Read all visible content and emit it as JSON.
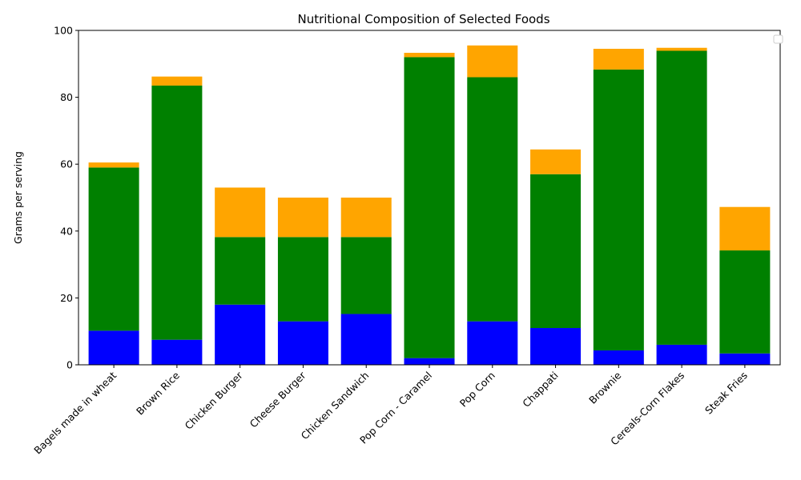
{
  "chart_data": {
    "type": "bar",
    "stacked": true,
    "title": "Nutritional Composition of Selected Foods",
    "xlabel": "",
    "ylabel": "Grams per serving",
    "ylim": [
      0,
      100
    ],
    "yticks": [
      0,
      20,
      40,
      60,
      80,
      100
    ],
    "legend": "top-right",
    "legend_entries": [],
    "categories": [
      "Bagels made in wheat",
      "Brown Rice",
      "Chicken Burger",
      "Cheese Burger",
      "Chicken Sandwich",
      "Pop Corn - Caramel",
      "Pop Corn",
      "Chappati",
      "Brownie",
      "Cereals-Corn Flakes",
      "Steak Fries"
    ],
    "series": [
      {
        "name": "",
        "color": "#0000ff",
        "values": [
          10.2,
          7.5,
          18.0,
          13.0,
          15.2,
          2.0,
          13.0,
          11.0,
          4.3,
          6.0,
          3.4
        ]
      },
      {
        "name": "",
        "color": "#008000",
        "values": [
          48.8,
          76.0,
          20.2,
          25.2,
          23.0,
          90.0,
          73.0,
          46.0,
          84.0,
          87.9,
          30.8
        ]
      },
      {
        "name": "",
        "color": "#ffa500",
        "values": [
          1.5,
          2.7,
          14.8,
          11.8,
          11.8,
          1.3,
          9.5,
          7.4,
          6.2,
          0.9,
          13.0
        ]
      }
    ]
  }
}
